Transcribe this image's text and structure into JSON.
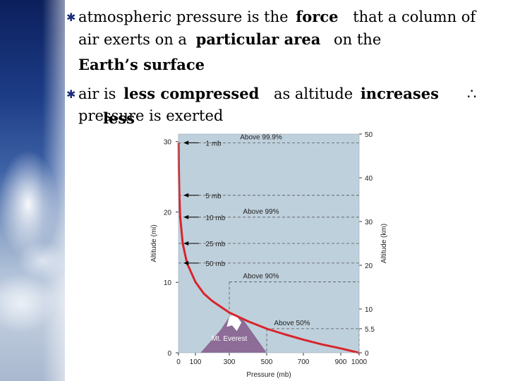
{
  "slide": {
    "bullet_glyph": "✱",
    "b1": {
      "l1_a": "atmospheric pressure is the",
      "l1_b": "force",
      "l1_c": "that a column of",
      "l2_a": "air exerts on a",
      "l2_b": "particular area",
      "l2_c": "on the",
      "l3": "Earth’s surface"
    },
    "b2": {
      "l1_a": "air is",
      "l1_b": "less compressed",
      "l1_c": "as altitude",
      "l1_d": "increases",
      "therefore": "∴",
      "l2_a": "pressure is exerted",
      "l2_b": "less"
    }
  },
  "chart_data": {
    "type": "line",
    "xlabel": "Pressure (mb)",
    "ylabel_left": "Altitude (mi)",
    "ylabel_right": "Altitude (km)",
    "x_ticks": [
      "0",
      "100",
      "300",
      "500",
      "700",
      "900",
      "1000"
    ],
    "y_left_ticks": [
      "0",
      "10",
      "20",
      "30"
    ],
    "y_right_ticks": [
      "0",
      "5.5",
      "10",
      "20",
      "30",
      "40",
      "50"
    ],
    "x_range": [
      0,
      1000
    ],
    "y_km_range": [
      0,
      50
    ],
    "series": [
      {
        "x": [
          1,
          2,
          5,
          10,
          25,
          50,
          100,
          150,
          200,
          300,
          400,
          500,
          600,
          700,
          800,
          900,
          1000
        ],
        "y": [
          48,
          42,
          36,
          31,
          25,
          20.5,
          16.2,
          13.5,
          11.8,
          9.2,
          7.2,
          5.5,
          4.2,
          3.0,
          1.9,
          1.0,
          0
        ]
      }
    ],
    "pressure_labels": [
      {
        "text": "1 mb",
        "km": 48
      },
      {
        "text": "5 mb",
        "km": 36
      },
      {
        "text": "10 mb",
        "km": 31
      },
      {
        "text": "25 mb",
        "km": 25
      },
      {
        "text": "50 mb",
        "km": 20.5
      }
    ],
    "above_levels": [
      {
        "text": "Above 99.9%",
        "km": 48
      },
      {
        "text": "Above 99%",
        "km": 31
      },
      {
        "text": "Above 90%",
        "km": 16.2
      },
      {
        "text": "Above 50%",
        "km": 5.5
      }
    ],
    "mountain_label": "Mt. Everest",
    "colors": {
      "background": "#bed0dc",
      "curve": "#d8242a",
      "mountain": "#8d6c97"
    }
  }
}
